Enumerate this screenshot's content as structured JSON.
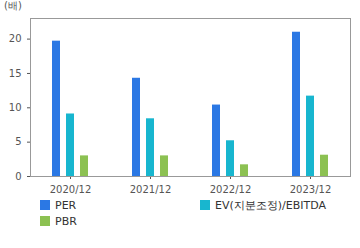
{
  "chart_data": {
    "type": "bar",
    "y_label": "(배)",
    "categories": [
      "2020/12",
      "2021/12",
      "2022/12",
      "2023/12"
    ],
    "series": [
      {
        "name": "PER",
        "color": "#2b78e4",
        "values": [
          19.7,
          14.3,
          10.4,
          21.0
        ]
      },
      {
        "name": "EV(지분조정)/EBITDA",
        "color": "#18b6cf",
        "values": [
          9.1,
          8.4,
          5.2,
          11.7
        ]
      },
      {
        "name": "PBR",
        "color": "#8cc152",
        "values": [
          3.0,
          3.0,
          1.7,
          3.1
        ]
      }
    ],
    "ylim": [
      0,
      23
    ],
    "yticks": [
      0,
      5,
      10,
      15,
      20
    ],
    "grid": false,
    "legend": "bottom"
  }
}
